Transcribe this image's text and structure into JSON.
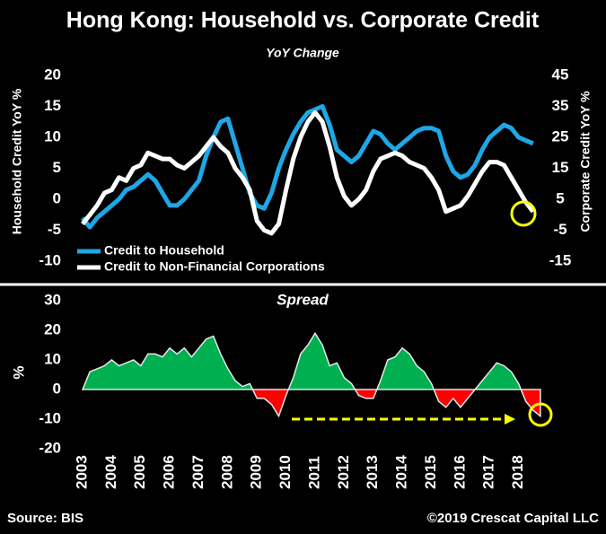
{
  "chart_data": [
    {
      "type": "line",
      "title": "Hong Kong: Household vs. Corporate Credit",
      "subtitle": "YoY Change",
      "ylabel": "Household Credit YoY %",
      "y2label": "Corporate Credit YoY %",
      "x": [
        2003,
        2003.25,
        2003.5,
        2003.75,
        2004,
        2004.25,
        2004.5,
        2004.75,
        2005,
        2005.25,
        2005.5,
        2005.75,
        2006,
        2006.25,
        2006.5,
        2006.75,
        2007,
        2007.25,
        2007.5,
        2007.75,
        2008,
        2008.25,
        2008.5,
        2008.75,
        2009,
        2009.25,
        2009.5,
        2009.75,
        2010,
        2010.25,
        2010.5,
        2010.75,
        2011,
        2011.25,
        2011.5,
        2011.75,
        2012,
        2012.25,
        2012.5,
        2012.75,
        2013,
        2013.25,
        2013.5,
        2013.75,
        2014,
        2014.25,
        2014.5,
        2014.75,
        2015,
        2015.25,
        2015.5,
        2015.75,
        2016,
        2016.25,
        2016.5,
        2016.75,
        2017,
        2017.25,
        2017.5,
        2017.75,
        2018,
        2018.25,
        2018.5
      ],
      "xlim": [
        2003,
        2019
      ],
      "ylim": [
        -10,
        20
      ],
      "yticks": [
        -10,
        -5,
        0,
        5,
        10,
        15,
        20
      ],
      "y2lim": [
        -15,
        45
      ],
      "y2ticks": [
        -15,
        -5,
        5,
        15,
        25,
        35,
        45
      ],
      "legend": "lower left",
      "series": [
        {
          "name": "Credit to Household",
          "color": "#1ea7e6",
          "axis": "y",
          "values": [
            -3,
            -4.5,
            -3,
            -2,
            -1,
            0,
            1.5,
            2,
            3,
            4,
            3,
            1,
            -1,
            -1,
            0,
            1.5,
            3,
            7,
            10,
            12.5,
            13,
            9,
            5,
            1,
            -1,
            -1.5,
            1,
            5,
            8,
            10.5,
            12.5,
            14,
            14.5,
            15,
            12,
            8,
            7,
            6,
            7,
            9,
            11,
            10.5,
            9,
            8,
            9,
            10,
            11,
            11.5,
            11.5,
            11,
            7,
            4.5,
            3.5,
            4,
            5.5,
            8,
            10,
            11,
            12,
            11.5,
            10,
            9.5,
            9
          ]
        },
        {
          "name": "Credit to Non-Financial Corporations",
          "color": "#ffffff",
          "axis": "y2",
          "values": [
            -3,
            0,
            3,
            7,
            8,
            12,
            11,
            15,
            16,
            20,
            19,
            18,
            18,
            16,
            15,
            17,
            19,
            22,
            25,
            22,
            20,
            15,
            12,
            8,
            -2,
            -5,
            -6,
            -3,
            8,
            18,
            25,
            30,
            33,
            30,
            22,
            12,
            6,
            3,
            5,
            8,
            14,
            18,
            19,
            20,
            19,
            17,
            16,
            15,
            12,
            8,
            1,
            2,
            3,
            6,
            10,
            14,
            17,
            17,
            16,
            12,
            8,
            4,
            1
          ]
        }
      ]
    },
    {
      "type": "area",
      "title": "Spread",
      "ylabel": "%",
      "x": [
        2003,
        2003.25,
        2003.5,
        2003.75,
        2004,
        2004.25,
        2004.5,
        2004.75,
        2005,
        2005.25,
        2005.5,
        2005.75,
        2006,
        2006.25,
        2006.5,
        2006.75,
        2007,
        2007.25,
        2007.5,
        2007.75,
        2008,
        2008.25,
        2008.5,
        2008.75,
        2009,
        2009.25,
        2009.5,
        2009.75,
        2010,
        2010.25,
        2010.5,
        2010.75,
        2011,
        2011.25,
        2011.5,
        2011.75,
        2012,
        2012.25,
        2012.5,
        2012.75,
        2013,
        2013.25,
        2013.5,
        2013.75,
        2014,
        2014.25,
        2014.5,
        2014.75,
        2015,
        2015.25,
        2015.5,
        2015.75,
        2016,
        2016.25,
        2016.5,
        2016.75,
        2017,
        2017.25,
        2017.5,
        2017.75,
        2018,
        2018.25,
        2018.5,
        2018.75
      ],
      "values": [
        0,
        6,
        7,
        8,
        10,
        8,
        9,
        10,
        8,
        12,
        12,
        11,
        14,
        12,
        14,
        11,
        14,
        17,
        18,
        12,
        7,
        3,
        1,
        2,
        -3,
        -3,
        -5,
        -9,
        -2,
        4,
        12,
        15,
        19,
        15,
        8,
        9,
        4,
        2,
        -2,
        -3,
        -3,
        3,
        10,
        11,
        14,
        12,
        8,
        6,
        2,
        -4,
        -6,
        -3,
        -6,
        -3,
        0,
        3,
        6,
        9,
        8,
        6,
        2,
        -4,
        -7,
        -9
      ],
      "xlim": [
        2003,
        2019
      ],
      "xticks": [
        2003,
        2004,
        2005,
        2006,
        2007,
        2008,
        2009,
        2010,
        2011,
        2012,
        2013,
        2014,
        2015,
        2016,
        2017,
        2018
      ],
      "ylim": [
        -20,
        30
      ],
      "yticks": [
        -20,
        -10,
        0,
        10,
        20,
        30
      ],
      "positive_color": "#00b050",
      "negative_color": "#ff0000"
    }
  ],
  "footer": {
    "source": "Source: BIS",
    "copyright": "©2019 Crescat Capital LLC"
  }
}
